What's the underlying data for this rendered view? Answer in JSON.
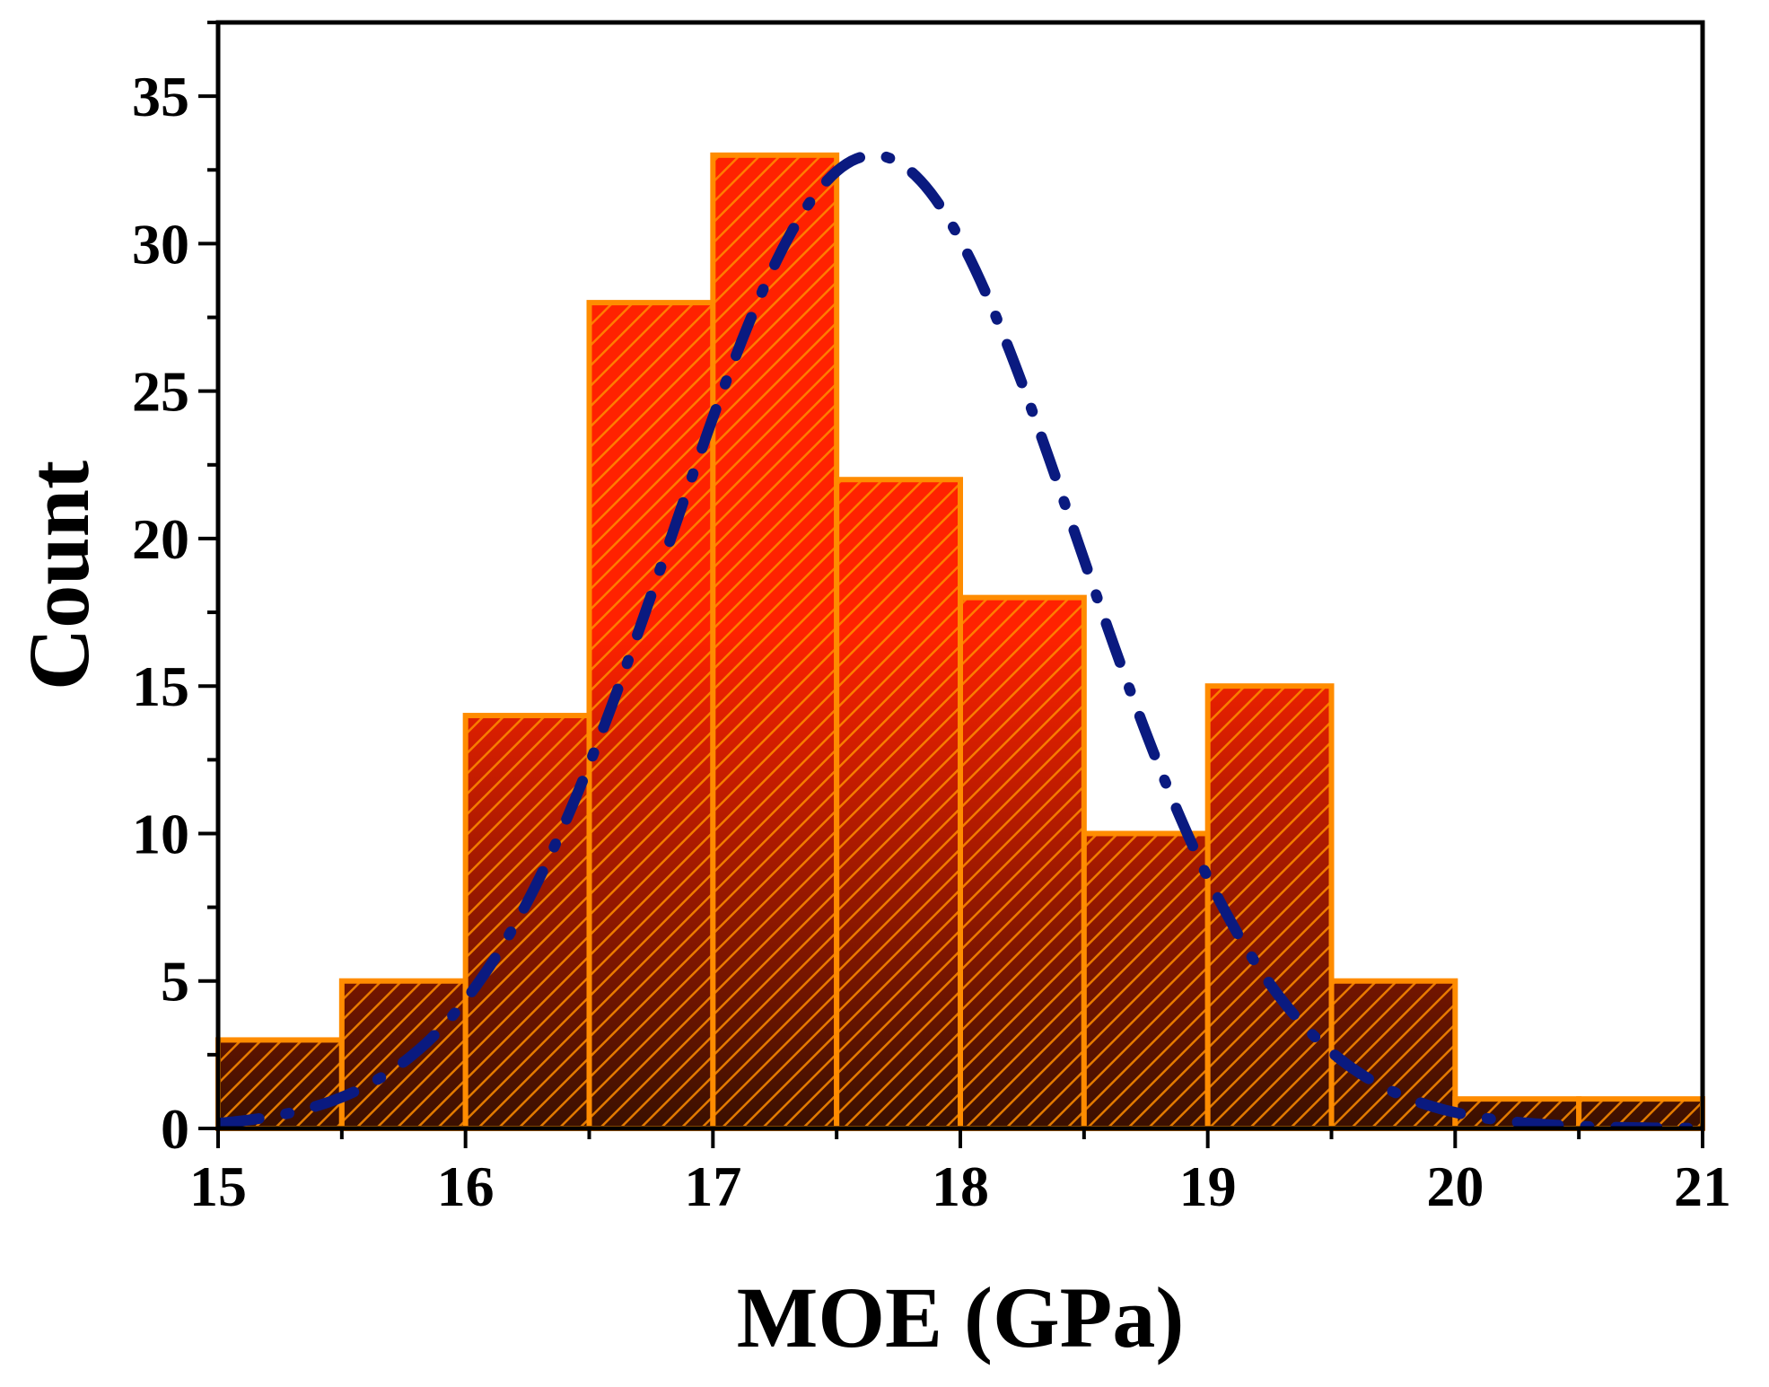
{
  "chart_data": {
    "type": "bar",
    "subtype": "histogram",
    "xlabel": "MOE (GPa)",
    "ylabel": "Count",
    "xlim": [
      15,
      21
    ],
    "ylim": [
      0,
      37.5
    ],
    "x_ticks": [
      15,
      16,
      17,
      18,
      19,
      20,
      21
    ],
    "y_ticks": [
      0,
      5,
      10,
      15,
      20,
      25,
      30,
      35
    ],
    "bin_width": 0.5,
    "bins": [
      {
        "start": 15.0,
        "end": 15.5,
        "count": 3
      },
      {
        "start": 15.5,
        "end": 16.0,
        "count": 5
      },
      {
        "start": 16.0,
        "end": 16.5,
        "count": 14
      },
      {
        "start": 16.5,
        "end": 17.0,
        "count": 28
      },
      {
        "start": 17.0,
        "end": 17.5,
        "count": 33
      },
      {
        "start": 17.5,
        "end": 18.0,
        "count": 22
      },
      {
        "start": 18.0,
        "end": 18.5,
        "count": 18
      },
      {
        "start": 18.5,
        "end": 19.0,
        "count": 10
      },
      {
        "start": 19.0,
        "end": 19.5,
        "count": 15
      },
      {
        "start": 19.5,
        "end": 20.0,
        "count": 5
      },
      {
        "start": 20.0,
        "end": 20.5,
        "count": 1
      },
      {
        "start": 20.5,
        "end": 21.0,
        "count": 1
      }
    ],
    "fit_curve": {
      "type": "normal",
      "mean": 17.65,
      "sd": 0.82,
      "peak": 33,
      "style": "dash-dot"
    },
    "colors": {
      "bar_fill": "#ff2200",
      "bar_fill_dark": "#3a1000",
      "bar_edge": "#ff8c00",
      "hatch": "#ff8c00",
      "curve": "#0a1a80",
      "axis": "#000000"
    },
    "grid": false,
    "legend": "none"
  }
}
